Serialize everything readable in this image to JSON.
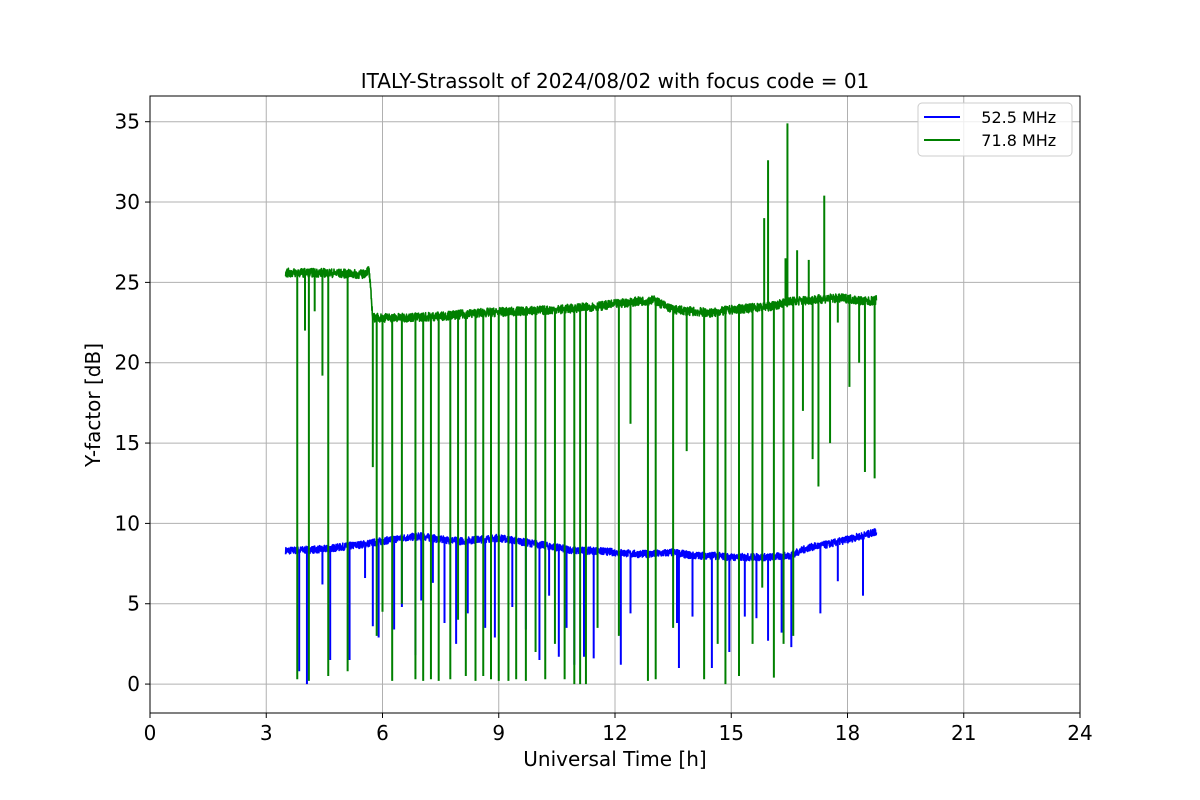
{
  "chart_data": {
    "type": "line",
    "title": "ITALY-Strassolt of 2024/08/02 with focus code = 01",
    "xlabel": "Universal Time [h]",
    "ylabel": "Y-factor [dB]",
    "xlim": [
      0,
      24
    ],
    "ylim": [
      -1.8,
      36.6
    ],
    "xticks": [
      0,
      3,
      6,
      9,
      12,
      15,
      18,
      21,
      24
    ],
    "yticks": [
      0,
      5,
      10,
      15,
      20,
      25,
      30,
      35
    ],
    "grid": true,
    "legend_position": "top-right",
    "series": [
      {
        "name": "   52.5 MHz",
        "color": "#0000ff",
        "baseline": [
          [
            3.5,
            8.3
          ],
          [
            4.5,
            8.4
          ],
          [
            5.5,
            8.7
          ],
          [
            6.0,
            8.9
          ],
          [
            6.5,
            9.1
          ],
          [
            7.0,
            9.2
          ],
          [
            7.5,
            9.0
          ],
          [
            8.0,
            8.9
          ],
          [
            8.5,
            9.0
          ],
          [
            9.0,
            9.1
          ],
          [
            9.5,
            8.9
          ],
          [
            10.0,
            8.7
          ],
          [
            10.5,
            8.5
          ],
          [
            11.0,
            8.3
          ],
          [
            11.5,
            8.3
          ],
          [
            12.0,
            8.2
          ],
          [
            12.5,
            8.1
          ],
          [
            13.0,
            8.1
          ],
          [
            13.5,
            8.2
          ],
          [
            14.0,
            8.0
          ],
          [
            14.5,
            8.0
          ],
          [
            15.0,
            7.9
          ],
          [
            15.5,
            7.9
          ],
          [
            16.0,
            7.9
          ],
          [
            16.5,
            8.0
          ],
          [
            17.0,
            8.5
          ],
          [
            17.5,
            8.7
          ],
          [
            18.0,
            9.0
          ],
          [
            18.5,
            9.3
          ],
          [
            18.75,
            9.5
          ]
        ],
        "dips": [
          [
            3.85,
            0.8
          ],
          [
            4.05,
            0.0
          ],
          [
            4.45,
            6.2
          ],
          [
            4.65,
            1.5
          ],
          [
            5.15,
            1.5
          ],
          [
            5.55,
            6.6
          ],
          [
            5.75,
            3.6
          ],
          [
            5.9,
            2.9
          ],
          [
            6.3,
            3.4
          ],
          [
            6.5,
            4.8
          ],
          [
            6.85,
            1.8
          ],
          [
            7.0,
            5.2
          ],
          [
            7.3,
            6.3
          ],
          [
            7.6,
            3.8
          ],
          [
            7.9,
            2.5
          ],
          [
            8.2,
            4.4
          ],
          [
            8.4,
            3.5
          ],
          [
            8.65,
            3.5
          ],
          [
            8.9,
            2.9
          ],
          [
            9.35,
            4.8
          ],
          [
            9.7,
            3.4
          ],
          [
            10.05,
            1.5
          ],
          [
            10.3,
            5.5
          ],
          [
            10.55,
            1.7
          ],
          [
            10.75,
            3.5
          ],
          [
            10.95,
            1.2
          ],
          [
            11.2,
            1.7
          ],
          [
            11.45,
            1.6
          ],
          [
            12.15,
            1.2
          ],
          [
            12.4,
            4.4
          ],
          [
            13.6,
            3.8
          ],
          [
            13.65,
            1.0
          ],
          [
            14.0,
            4.2
          ],
          [
            14.5,
            1.0
          ],
          [
            14.95,
            2.0
          ],
          [
            15.35,
            4.2
          ],
          [
            15.65,
            4.1
          ],
          [
            15.95,
            2.7
          ],
          [
            16.3,
            3.2
          ],
          [
            16.55,
            2.3
          ],
          [
            17.3,
            4.4
          ],
          [
            17.75,
            6.4
          ],
          [
            18.4,
            5.5
          ]
        ],
        "peak": [
          18.7,
          9.7
        ]
      },
      {
        "name": "   71.8 MHz",
        "color": "#008000",
        "baseline": [
          [
            3.5,
            25.6
          ],
          [
            4.5,
            25.6
          ],
          [
            5.5,
            25.5
          ],
          [
            5.65,
            25.8
          ],
          [
            5.75,
            22.8
          ],
          [
            6.5,
            22.8
          ],
          [
            7.5,
            22.9
          ],
          [
            8.5,
            23.1
          ],
          [
            9.5,
            23.2
          ],
          [
            10.5,
            23.3
          ],
          [
            11.5,
            23.5
          ],
          [
            12.5,
            23.8
          ],
          [
            13.0,
            23.9
          ],
          [
            13.5,
            23.3
          ],
          [
            14.0,
            23.2
          ],
          [
            14.5,
            23.1
          ],
          [
            15.0,
            23.3
          ],
          [
            15.5,
            23.4
          ],
          [
            16.0,
            23.5
          ],
          [
            16.5,
            23.8
          ],
          [
            17.0,
            23.9
          ],
          [
            17.5,
            24.0
          ],
          [
            18.0,
            24.0
          ],
          [
            18.5,
            23.8
          ],
          [
            18.75,
            23.9
          ]
        ],
        "spikes": [
          [
            15.85,
            29.0
          ],
          [
            15.95,
            32.6
          ],
          [
            16.4,
            26.5
          ],
          [
            16.45,
            34.9
          ],
          [
            16.7,
            27.0
          ],
          [
            17.0,
            26.4
          ],
          [
            17.4,
            30.4
          ]
        ],
        "dips": [
          [
            3.8,
            0.3
          ],
          [
            4.0,
            22.0
          ],
          [
            4.1,
            0.2
          ],
          [
            4.25,
            23.2
          ],
          [
            4.45,
            19.2
          ],
          [
            4.6,
            0.5
          ],
          [
            5.1,
            0.8
          ],
          [
            5.75,
            13.5
          ],
          [
            5.85,
            3.0
          ],
          [
            6.0,
            4.5
          ],
          [
            6.25,
            0.2
          ],
          [
            6.5,
            5.0
          ],
          [
            6.85,
            0.3
          ],
          [
            7.05,
            0.2
          ],
          [
            7.25,
            0.3
          ],
          [
            7.45,
            0.2
          ],
          [
            7.75,
            0.3
          ],
          [
            7.95,
            4.0
          ],
          [
            8.15,
            0.5
          ],
          [
            8.4,
            0.2
          ],
          [
            8.6,
            0.5
          ],
          [
            8.8,
            0.3
          ],
          [
            9.0,
            0.2
          ],
          [
            9.25,
            0.2
          ],
          [
            9.45,
            0.3
          ],
          [
            9.7,
            0.2
          ],
          [
            9.95,
            2.0
          ],
          [
            10.2,
            0.3
          ],
          [
            10.45,
            2.5
          ],
          [
            10.7,
            0.3
          ],
          [
            10.95,
            0.0
          ],
          [
            11.1,
            0.0
          ],
          [
            11.25,
            0.0
          ],
          [
            11.55,
            3.5
          ],
          [
            12.1,
            3.0
          ],
          [
            12.4,
            16.2
          ],
          [
            12.85,
            0.2
          ],
          [
            13.05,
            0.3
          ],
          [
            13.5,
            3.5
          ],
          [
            13.85,
            14.5
          ],
          [
            14.3,
            0.3
          ],
          [
            14.65,
            2.5
          ],
          [
            14.85,
            0.0
          ],
          [
            15.2,
            0.5
          ],
          [
            15.55,
            2.5
          ],
          [
            15.8,
            6.0
          ],
          [
            16.1,
            0.4
          ],
          [
            16.35,
            2.5
          ],
          [
            16.6,
            3.0
          ],
          [
            16.85,
            17.0
          ],
          [
            17.1,
            14.0
          ],
          [
            17.25,
            12.3
          ],
          [
            17.55,
            15.0
          ],
          [
            17.75,
            22.5
          ],
          [
            18.05,
            18.5
          ],
          [
            18.3,
            20.0
          ],
          [
            18.45,
            13.2
          ],
          [
            18.7,
            12.8
          ]
        ]
      }
    ]
  }
}
